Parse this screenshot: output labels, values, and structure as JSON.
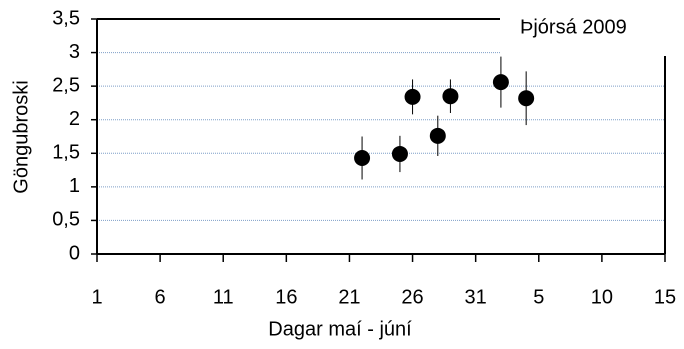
{
  "chart_data": {
    "type": "scatter",
    "title": "Þjórsá 2009",
    "xlabel": "Dagar maí - júní",
    "ylabel": "Göngubroski",
    "series": [
      {
        "name": "Þjórsá 2009",
        "color": "#000000",
        "x": [
          22,
          25,
          26,
          28,
          29,
          33,
          35
        ],
        "values": [
          1.43,
          1.49,
          2.34,
          1.76,
          2.35,
          2.56,
          2.32
        ],
        "errors": [
          0.32,
          0.27,
          0.26,
          0.3,
          0.25,
          0.38,
          0.4
        ]
      }
    ],
    "xlim": [
      1,
      46
    ],
    "xticks": [
      1,
      6,
      11,
      16,
      21,
      26,
      31,
      {
        "value": 36,
        "label": "5"
      },
      {
        "value": 41,
        "label": "10"
      },
      {
        "value": 46,
        "label": "15"
      }
    ],
    "ylim": [
      0,
      3.5
    ],
    "yticks": [
      0,
      {
        "value": 0.5,
        "label": "0,5"
      },
      1,
      {
        "value": 1.5,
        "label": "1,5"
      },
      2,
      {
        "value": 2.5,
        "label": "2,5"
      },
      3,
      {
        "value": 3.5,
        "label": "3,5"
      }
    ],
    "grid": true
  }
}
